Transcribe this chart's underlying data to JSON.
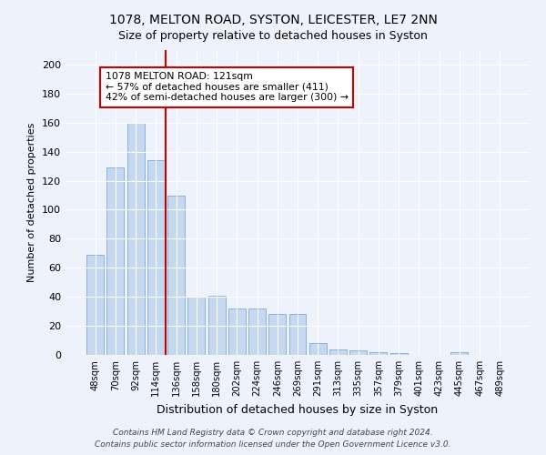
{
  "title": "1078, MELTON ROAD, SYSTON, LEICESTER, LE7 2NN",
  "subtitle": "Size of property relative to detached houses in Syston",
  "xlabel": "Distribution of detached houses by size in Syston",
  "ylabel": "Number of detached properties",
  "categories": [
    "48sqm",
    "70sqm",
    "92sqm",
    "114sqm",
    "136sqm",
    "158sqm",
    "180sqm",
    "202sqm",
    "224sqm",
    "246sqm",
    "269sqm",
    "291sqm",
    "313sqm",
    "335sqm",
    "357sqm",
    "379sqm",
    "401sqm",
    "423sqm",
    "445sqm",
    "467sqm",
    "489sqm"
  ],
  "values": [
    69,
    129,
    160,
    134,
    110,
    40,
    41,
    32,
    32,
    28,
    28,
    8,
    4,
    3,
    2,
    1,
    0,
    0,
    2,
    0,
    0
  ],
  "bar_color": "#c5d8f0",
  "bar_edge_color": "#7aaad4",
  "vline_x_index": 3,
  "vline_color": "#cc0000",
  "annotation_title": "1078 MELTON ROAD: 121sqm",
  "annotation_line1": "← 57% of detached houses are smaller (411)",
  "annotation_line2": "42% of semi-detached houses are larger (300) →",
  "annotation_box_facecolor": "#ffffff",
  "annotation_box_edgecolor": "#cc0000",
  "ylim": [
    0,
    210
  ],
  "yticks": [
    0,
    20,
    40,
    60,
    80,
    100,
    120,
    140,
    160,
    180,
    200
  ],
  "footnote1": "Contains HM Land Registry data © Crown copyright and database right 2024.",
  "footnote2": "Contains public sector information licensed under the Open Government Licence v3.0.",
  "bg_color": "#eef2fb",
  "plot_bg_color": "#eef2fb",
  "title_fontsize": 10,
  "subtitle_fontsize": 9,
  "ylabel_fontsize": 8,
  "xlabel_fontsize": 9
}
